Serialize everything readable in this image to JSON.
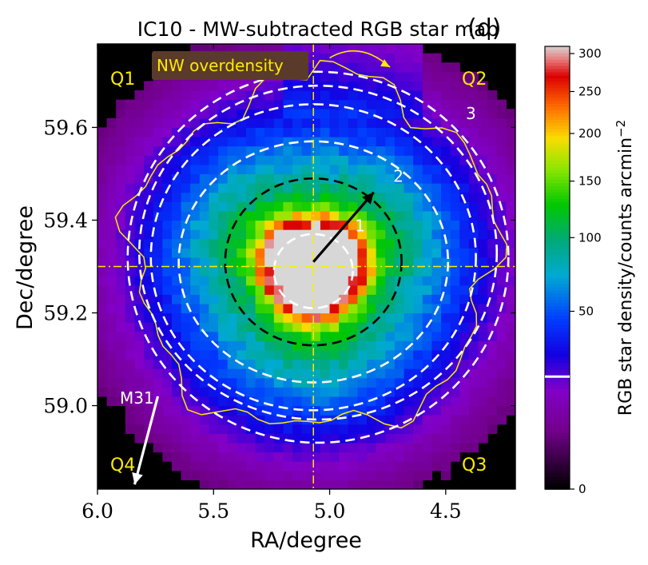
{
  "chart_data": {
    "type": "heatmap",
    "title": "IC10 - MW-subtracted RGB star map",
    "panel_label": "(d)",
    "xlabel": "RA/degree",
    "ylabel": "Dec/degree",
    "xlim": [
      6.0,
      4.2
    ],
    "ylim": [
      58.82,
      59.78
    ],
    "x_ticks": [
      6.0,
      5.5,
      5.0,
      4.5
    ],
    "x_tick_labels": [
      "6.0",
      "5.5",
      "5.0",
      "4.5"
    ],
    "y_ticks": [
      59.0,
      59.2,
      59.4,
      59.6
    ],
    "y_tick_labels": [
      "59.0",
      "59.2",
      "59.4",
      "59.6"
    ],
    "center": {
      "ra": 5.07,
      "dec": 59.3
    },
    "colorbar": {
      "label": "RGB star density/counts arcmin",
      "label_exponent": "−2",
      "range": [
        0,
        310
      ],
      "scale": "sqrt",
      "ticks": [
        0,
        50,
        100,
        150,
        200,
        250,
        300
      ],
      "tick_labels": [
        "0",
        "50",
        "100",
        "150",
        "200",
        "250",
        "300"
      ],
      "marker_value": 20
    },
    "density_model": {
      "components": [
        {
          "name": "inner_ring",
          "peak": 300,
          "radius_deg": 0.075,
          "width_deg": 0.05
        },
        {
          "name": "core",
          "peak": 180,
          "radius_deg": 0.0,
          "width_deg": 0.03
        },
        {
          "name": "outer_disk",
          "peak": 150,
          "radius_deg": 0.0,
          "width_deg": 0.26
        }
      ],
      "pixel_size_deg": {
        "ra": 0.04,
        "dec": 0.02
      },
      "contour_level": 12
    },
    "ellipses": [
      {
        "id": "0",
        "label": "",
        "ra": 5.07,
        "dec": 59.29,
        "a_ra": 0.17,
        "b_dec": 0.08,
        "color": "#ffffff",
        "style": "dashed"
      },
      {
        "id": "1",
        "label": "1",
        "ra": 5.07,
        "dec": 59.31,
        "a_ra": 0.38,
        "b_dec": 0.18,
        "color": "#000000",
        "style": "dashed"
      },
      {
        "id": "2",
        "label": "2",
        "ra": 5.07,
        "dec": 59.31,
        "a_ra": 0.58,
        "b_dec": 0.26,
        "color": "#ffffff",
        "style": "dashed"
      },
      {
        "id": "2b",
        "label": "",
        "ra": 5.07,
        "dec": 59.32,
        "a_ra": 0.7,
        "b_dec": 0.33,
        "color": "#ffffff",
        "style": "dashed"
      },
      {
        "id": "3",
        "label": "3",
        "ra": 5.05,
        "dec": 59.33,
        "a_ra": 0.77,
        "b_dec": 0.36,
        "color": "#ffffff",
        "style": "dashed"
      },
      {
        "id": "3b",
        "label": "",
        "ra": 5.05,
        "dec": 59.32,
        "a_ra": 0.82,
        "b_dec": 0.4,
        "color": "#ffffff",
        "style": "dashed"
      }
    ],
    "quadrants": [
      "Q1",
      "Q2",
      "Q3",
      "Q4"
    ],
    "annotations": {
      "overdensity": "NW overdensity",
      "m31": "M31",
      "major_axis_arrow": {
        "from": [
          5.07,
          59.31
        ],
        "to": [
          4.81,
          59.46
        ],
        "color": "#000000"
      },
      "m31_arrow": {
        "from": [
          5.74,
          59.02
        ],
        "to": [
          5.84,
          58.83
        ],
        "color": "#ffffff"
      },
      "overdensity_arrow": {
        "from": [
          5.0,
          59.75
        ],
        "to": [
          4.74,
          59.73
        ],
        "color": "#ffea00"
      }
    },
    "axis_lines": {
      "ra": 5.07,
      "dec": 59.3,
      "color": "#ffea00",
      "style": "dashdot"
    }
  }
}
